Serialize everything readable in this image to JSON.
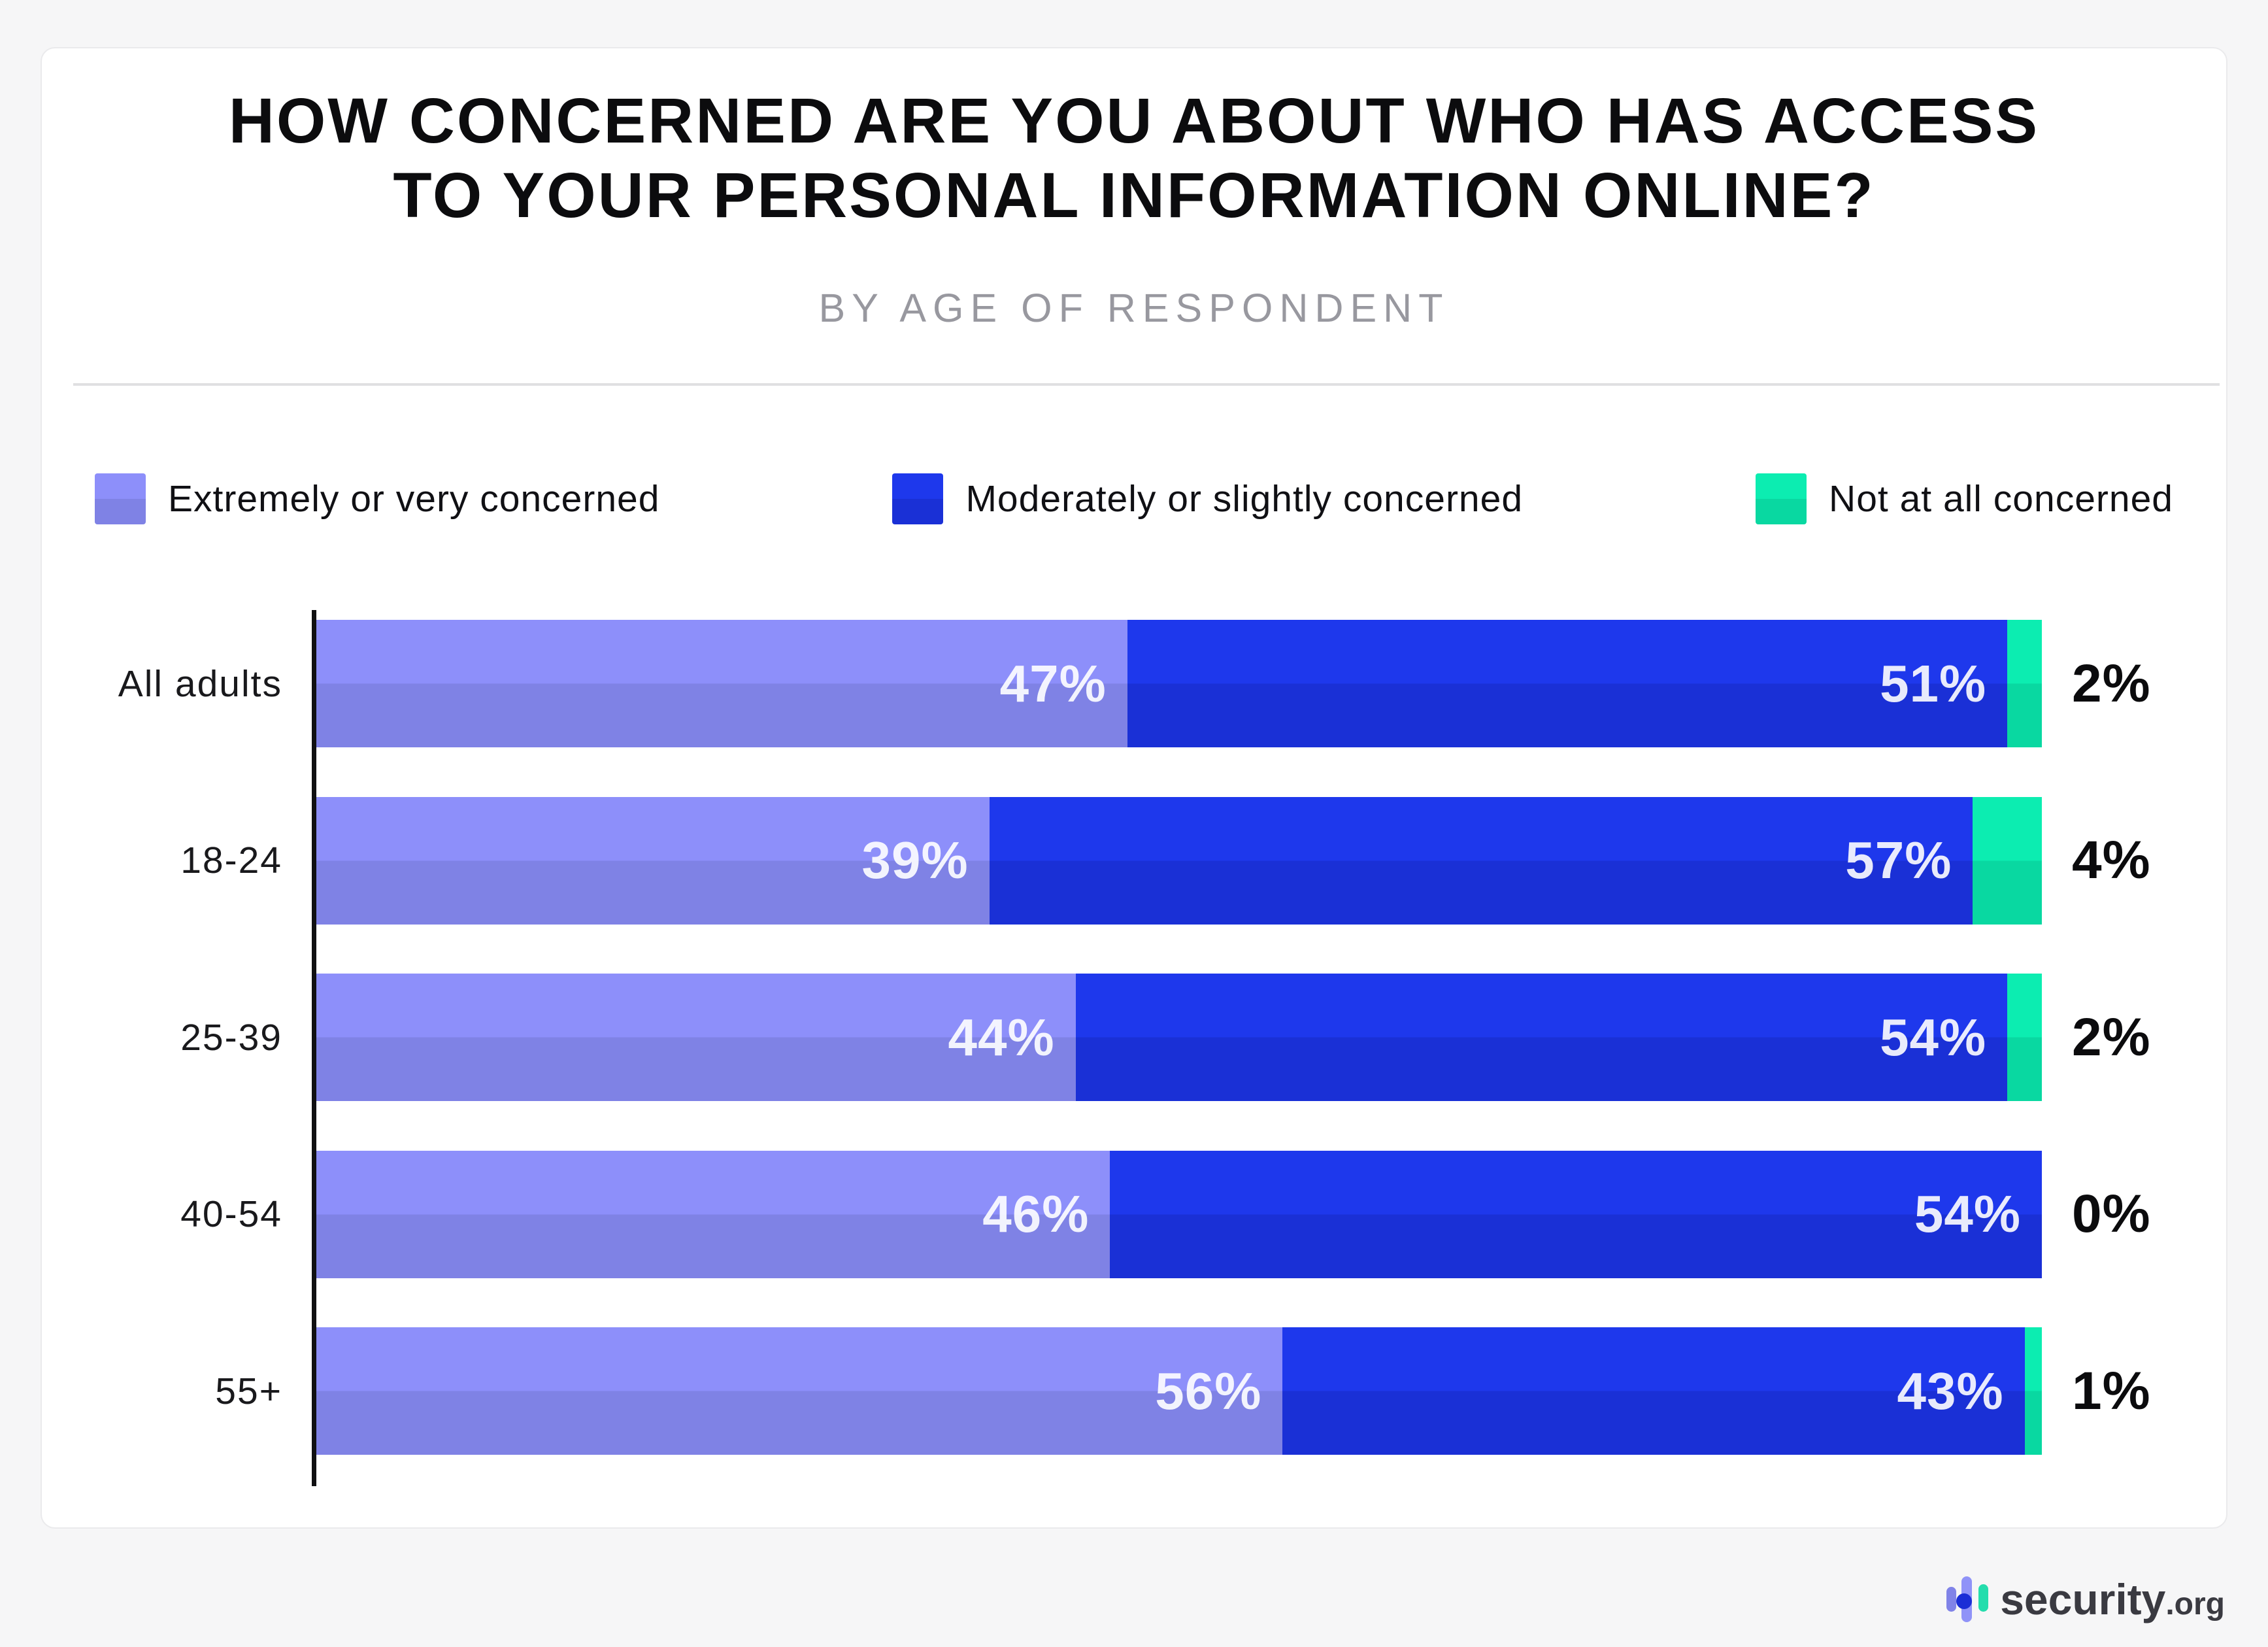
{
  "page_background": "#f6f6f7",
  "title_line1": "HOW CONCERNED ARE YOU ABOUT WHO HAS ACCESS",
  "title_line2": "TO YOUR PERSONAL INFORMATION ONLINE?",
  "subtitle": "BY AGE OF RESPONDENT",
  "legend": [
    {
      "label": "Extremely or very concerned",
      "color_top": "#8D8FFA",
      "color_bottom": "#7F82E5"
    },
    {
      "label": "Moderately or slightly concerned",
      "color_top": "#1E38EC",
      "color_bottom": "#1A30D6"
    },
    {
      "label": "Not at all concerned",
      "color_top": "#0CEDB1",
      "color_bottom": "#09D8A1"
    }
  ],
  "chart_data": {
    "type": "bar",
    "orientation": "horizontal",
    "stacked": true,
    "title": "HOW CONCERNED ARE YOU ABOUT WHO HAS ACCESS TO YOUR PERSONAL INFORMATION ONLINE?",
    "subtitle": "BY AGE OF RESPONDENT",
    "categories": [
      "All adults",
      "18-24",
      "25-39",
      "40-54",
      "55+"
    ],
    "series": [
      {
        "name": "Extremely or very concerned",
        "color_top": "#8D8FFA",
        "color_bottom": "#7F82E5",
        "values": [
          47,
          39,
          44,
          46,
          56
        ]
      },
      {
        "name": "Moderately or slightly concerned",
        "color_top": "#1E38EC",
        "color_bottom": "#1A30D6",
        "values": [
          51,
          57,
          54,
          54,
          43
        ]
      },
      {
        "name": "Not at all concerned",
        "color_top": "#0CEDB1",
        "color_bottom": "#09D8A1",
        "values": [
          2,
          4,
          2,
          0,
          1
        ]
      }
    ],
    "outside_labels": [
      "2%",
      "4%",
      "2%",
      "0%",
      "1%"
    ],
    "value_suffix": "%",
    "xlim": [
      0,
      100
    ],
    "legend_position": "top",
    "grid": false,
    "axis_color": "#101012"
  },
  "branding": {
    "name": "security",
    "tld": ".org"
  }
}
